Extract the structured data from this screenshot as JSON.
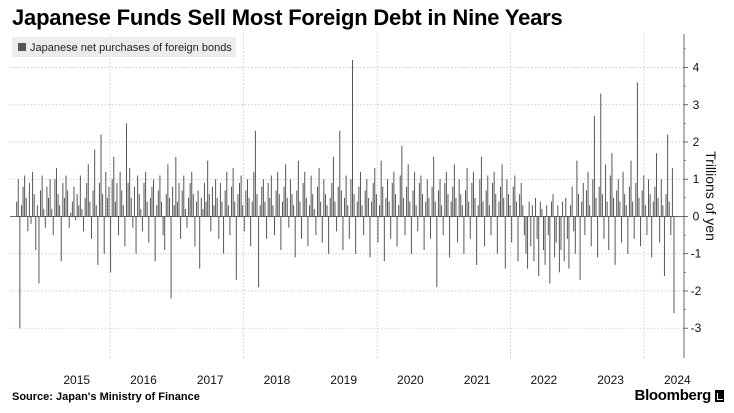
{
  "title": "Japanese Funds Sell Most Foreign Debt in Nine Years",
  "source": "Source: Japan's Ministry of Finance",
  "brand": "Bloomberg",
  "colors": {
    "bar": "#555555",
    "grid": "#bdbdbd",
    "zero": "#333333",
    "axis": "#444444",
    "legend_bg": "#ececec"
  },
  "chart_data": {
    "type": "bar",
    "title": "Japanese Funds Sell Most Foreign Debt in Nine Years",
    "series": [
      {
        "name": "Japanese net purchases of foreign bonds"
      }
    ],
    "ylabel": "Trillions of yen",
    "ylim": [
      -3.8,
      4.9
    ],
    "yticks": [
      -3,
      -2,
      -1,
      0,
      1,
      2,
      3,
      4
    ],
    "ytick_labels": [
      "-3",
      "-2",
      "-1",
      "0",
      "1",
      "2",
      "3",
      "4"
    ],
    "xlim": [
      2014.5,
      2024.6
    ],
    "xticks": [
      2015,
      2016,
      2017,
      2018,
      2019,
      2020,
      2021,
      2022,
      2023,
      2024
    ],
    "xtick_labels": [
      "2015",
      "2016",
      "2017",
      "2018",
      "2019",
      "2020",
      "2021",
      "2022",
      "2023",
      "2024"
    ],
    "x_grid": [
      2016,
      2018,
      2020,
      2022,
      2024
    ],
    "grid": true,
    "legend_position": "top-left",
    "frequency": "weekly",
    "start": 2014.6,
    "end": 2024.45,
    "values": [
      0.4,
      1.0,
      -3.0,
      0.3,
      0.8,
      1.1,
      0.5,
      -0.4,
      0.9,
      -0.2,
      1.2,
      0.6,
      -0.9,
      0.3,
      -1.8,
      0.7,
      1.1,
      0.2,
      -0.3,
      0.8,
      0.5,
      1.0,
      0.2,
      -0.5,
      1.0,
      1.3,
      0.6,
      0.3,
      -1.2,
      0.9,
      0.5,
      1.1,
      0.7,
      -0.3,
      0.1,
      0.4,
      0.8,
      -0.1,
      0.6,
      0.3,
      1.1,
      0.2,
      -0.4,
      0.5,
      0.9,
      1.4,
      0.4,
      -0.6,
      0.7,
      1.8,
      0.3,
      -1.3,
      0.9,
      2.2,
      0.6,
      -1.0,
      1.2,
      0.5,
      0.8,
      -1.5,
      1.0,
      1.6,
      0.4,
      0.9,
      -0.5,
      1.2,
      0.7,
      0.3,
      -0.8,
      2.5,
      0.9,
      1.3,
      0.5,
      -0.3,
      0.8,
      -1.0,
      1.1,
      0.6,
      0.2,
      -0.4,
      0.9,
      1.2,
      0.4,
      -0.7,
      0.5,
      0.8,
      1.0,
      -1.2,
      0.3,
      0.7,
      1.1,
      0.4,
      -0.5,
      -0.9,
      0.6,
      1.4,
      0.5,
      -2.2,
      0.8,
      0.3,
      1.6,
      0.4,
      0.9,
      -0.6,
      0.7,
      1.1,
      0.2,
      -0.3,
      0.5,
      0.9,
      1.2,
      0.6,
      -0.8,
      0.4,
      0.7,
      -1.4,
      0.5,
      0.2,
      0.9,
      0.4,
      1.5,
      0.6,
      -0.4,
      0.8,
      0.3,
      1.0,
      0.5,
      -0.6,
      0.9,
      0.4,
      -1.0,
      0.7,
      1.2,
      0.3,
      -0.5,
      0.8,
      1.3,
      0.4,
      -1.7,
      0.6,
      0.9,
      1.1,
      0.3,
      -0.4,
      0.7,
      1.0,
      0.5,
      -0.8,
      0.4,
      1.2,
      2.3,
      0.6,
      -1.9,
      0.3,
      0.8,
      1.0,
      0.4,
      -0.6,
      0.9,
      0.5,
      1.1,
      0.3,
      -0.5,
      0.7,
      1.2,
      0.6,
      -0.9,
      0.4,
      0.8,
      1.4,
      0.5,
      -0.3,
      1.0,
      0.6,
      0.3,
      -1.1,
      0.7,
      1.5,
      0.4,
      -0.6,
      0.9,
      1.2,
      0.5,
      -0.8,
      0.3,
      1.1,
      0.6,
      0.2,
      -0.5,
      0.8,
      1.3,
      0.4,
      -0.7,
      1.0,
      0.6,
      0.3,
      -1.0,
      0.5,
      0.9,
      1.6,
      0.4,
      -0.4,
      0.8,
      2.3,
      0.7,
      -0.9,
      0.5,
      1.1,
      0.3,
      -0.6,
      1.0,
      4.2,
      0.6,
      -1.0,
      0.4,
      0.8,
      1.2,
      0.3,
      -0.5,
      0.7,
      1.0,
      0.5,
      -1.1,
      0.4,
      0.9,
      1.3,
      0.6,
      -0.7,
      0.3,
      1.5,
      0.8,
      -1.2,
      0.5,
      1.0,
      0.4,
      -0.6,
      0.9,
      1.2,
      0.6,
      -0.8,
      0.3,
      1.1,
      1.9,
      0.5,
      -0.5,
      0.8,
      1.4,
      0.4,
      -1.0,
      0.7,
      1.2,
      0.3,
      -0.4,
      0.9,
      1.1,
      0.6,
      -0.9,
      0.4,
      1.0,
      0.5,
      -0.6,
      0.8,
      1.6,
      0.4,
      -1.9,
      0.7,
      1.0,
      0.3,
      -0.5,
      0.9,
      1.2,
      0.6,
      -1.1,
      0.4,
      0.8,
      1.4,
      0.5,
      -0.7,
      1.0,
      0.6,
      0.3,
      -1.0,
      0.7,
      1.3,
      0.4,
      -0.6,
      0.9,
      1.2,
      0.5,
      -1.3,
      0.3,
      1.0,
      1.6,
      0.4,
      -0.8,
      0.7,
      1.1,
      0.3,
      -0.5,
      0.9,
      1.2,
      0.6,
      -1.0,
      0.4,
      0.8,
      1.4,
      0.5,
      -1.4,
      1.0,
      0.6,
      0.3,
      -0.7,
      0.8,
      1.1,
      0.4,
      -1.2,
      0.6,
      0.9,
      0.3,
      -0.5,
      -1.0,
      -1.4,
      0.4,
      -0.8,
      0.3,
      -1.2,
      0.5,
      -0.6,
      -1.6,
      0.4,
      0.2,
      -0.9,
      -1.3,
      0.3,
      -0.5,
      -1.8,
      0.4,
      0.6,
      -1.1,
      -0.7,
      0.3,
      -1.5,
      -0.9,
      0.4,
      -1.2,
      0.5,
      -0.6,
      -1.4,
      0.3,
      0.8,
      -0.4,
      -1.0,
      1.5,
      0.6,
      -1.7,
      0.4,
      0.9,
      -0.5,
      0.7,
      1.2,
      0.3,
      -0.8,
      1.0,
      2.7,
      0.5,
      -1.1,
      0.8,
      3.3,
      0.6,
      -0.6,
      1.4,
      0.4,
      -0.9,
      1.1,
      1.7,
      0.5,
      -1.3,
      0.7,
      1.0,
      0.4,
      -0.7,
      1.2,
      0.6,
      0.3,
      -1.0,
      0.8,
      1.5,
      0.4,
      -0.6,
      0.9,
      3.6,
      0.5,
      -0.8,
      0.7,
      1.1,
      0.3,
      -0.5,
      1.0,
      0.6,
      -1.1,
      0.4,
      0.8,
      1.7,
      0.5,
      -0.7,
      1.0,
      0.3,
      -1.6,
      0.6,
      2.2,
      0.4,
      -0.5,
      1.3,
      -2.6
    ]
  }
}
